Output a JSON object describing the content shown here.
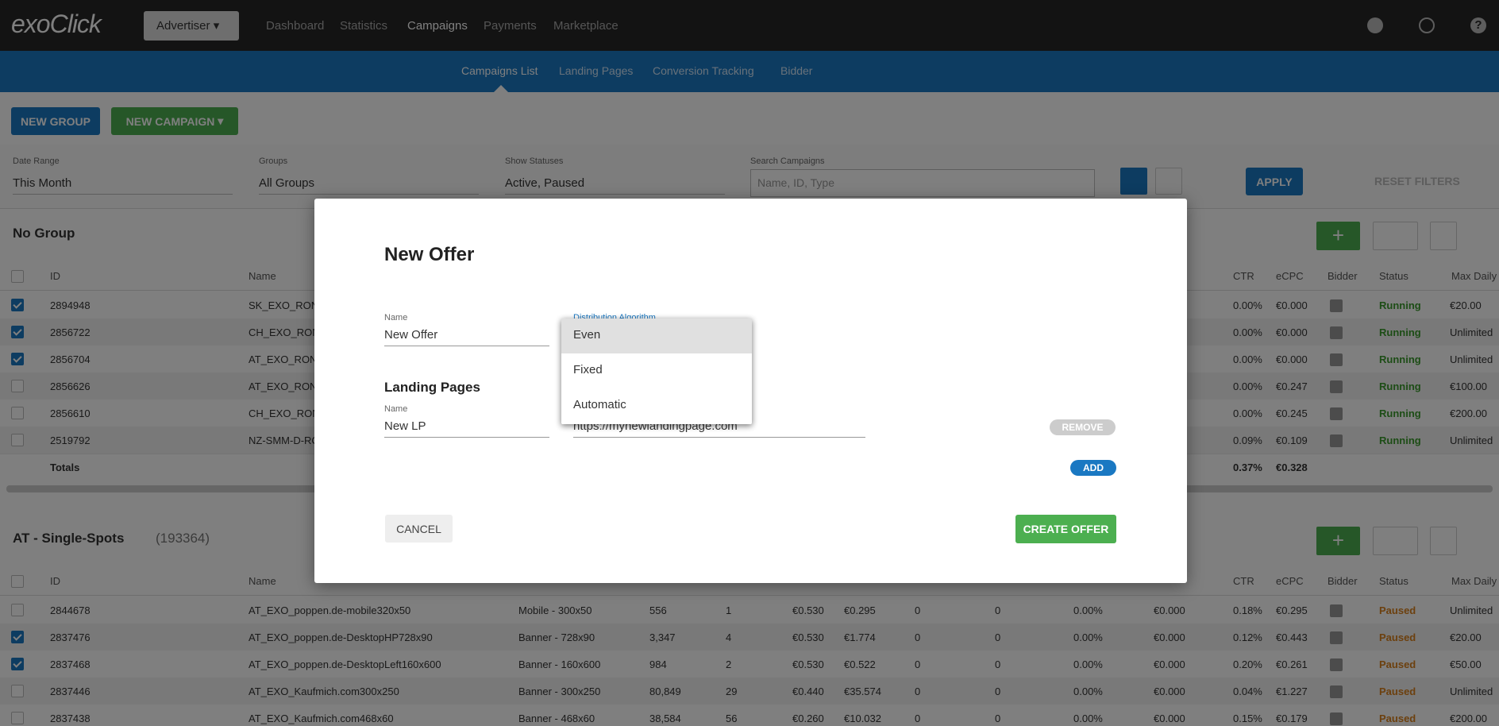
{
  "nav": {
    "logo": "exoClick",
    "account": "Advertiser",
    "menu": [
      "Dashboard",
      "Statistics",
      "Campaigns",
      "Payments",
      "Marketplace"
    ],
    "active": 2
  },
  "subnav": {
    "items": [
      "Campaigns List",
      "Landing Pages",
      "Conversion Tracking",
      "Bidder"
    ],
    "active": 0
  },
  "actions": {
    "new_group": "NEW GROUP",
    "new_campaign": "NEW CAMPAIGN"
  },
  "filters": [
    {
      "label": "Date Range",
      "value": "This Month"
    },
    {
      "label": "Groups",
      "value": "All Groups"
    },
    {
      "label": "Show Statuses",
      "value": "Active, Paused"
    },
    {
      "label": "Search Campaigns",
      "placeholder": "Name, ID, Type"
    }
  ],
  "filter_buttons": {
    "apply": "APPLY",
    "reset": "RESET FILTERS"
  },
  "groups": [
    {
      "title": "No Group",
      "headers": [
        "ID",
        "Name",
        "CTR",
        "eCPC",
        "Bidder",
        "Status",
        "Max Daily"
      ],
      "status_color": "#3a9a2c",
      "rows": [
        {
          "selected": true,
          "cells": [
            "2894948",
            "SK_EXO_RON_",
            "0.00%",
            "€0.000"
          ],
          "status": "Running",
          "max_daily": "€20.00"
        },
        {
          "selected": true,
          "cells": [
            "2856722",
            "CH_EXO_RON_",
            "0.00%",
            "€0.000"
          ],
          "status": "Running",
          "max_daily": "Unlimited"
        },
        {
          "selected": true,
          "cells": [
            "2856704",
            "AT_EXO_RON_",
            "0.00%",
            "€0.000"
          ],
          "status": "Running",
          "max_daily": "Unlimited"
        },
        {
          "selected": false,
          "cells": [
            "2856626",
            "AT_EXO_RON_",
            "0.00%",
            "€0.247"
          ],
          "status": "Running",
          "max_daily": "€100.00"
        },
        {
          "selected": false,
          "cells": [
            "2856610",
            "CH_EXO_RON_",
            "0.00%",
            "€0.245"
          ],
          "status": "Running",
          "max_daily": "€200.00"
        },
        {
          "selected": false,
          "cells": [
            "2519792",
            "NZ-SMM-D-RO",
            "0.09%",
            "€0.109"
          ],
          "status": "Running",
          "max_daily": "Unlimited"
        }
      ],
      "totals": {
        "label": "Totals",
        "ctr": "0.37%",
        "ecpc": "€0.328"
      }
    },
    {
      "title": "AT - Single-Spots",
      "count": "(193364)",
      "headers": [
        "ID",
        "Name",
        "CTR",
        "eCPC",
        "Bidder",
        "Status",
        "Max Daily"
      ],
      "status_color": "#d9801c",
      "rows": [
        {
          "selected": false,
          "cells": [
            "2844678",
            "AT_EXO_poppen.de-mobile320x50",
            "Mobile - 300x50",
            "556",
            "1",
            "€0.530",
            "€0.295",
            "0",
            "0",
            "0.00%",
            "€0.000",
            "0.18%",
            "€0.295"
          ],
          "status": "Paused",
          "max_daily": "Unlimited"
        },
        {
          "selected": true,
          "cells": [
            "2837476",
            "AT_EXO_poppen.de-DesktopHP728x90",
            "Banner - 728x90",
            "3,347",
            "4",
            "€0.530",
            "€1.774",
            "0",
            "0",
            "0.00%",
            "€0.000",
            "0.12%",
            "€0.443"
          ],
          "status": "Paused",
          "max_daily": "€20.00"
        },
        {
          "selected": true,
          "cells": [
            "2837468",
            "AT_EXO_poppen.de-DesktopLeft160x600",
            "Banner - 160x600",
            "984",
            "2",
            "€0.530",
            "€0.522",
            "0",
            "0",
            "0.00%",
            "€0.000",
            "0.20%",
            "€0.261"
          ],
          "status": "Paused",
          "max_daily": "€50.00"
        },
        {
          "selected": false,
          "cells": [
            "2837446",
            "AT_EXO_Kaufmich.com300x250",
            "Banner - 300x250",
            "80,849",
            "29",
            "€0.440",
            "€35.574",
            "0",
            "0",
            "0.00%",
            "€0.000",
            "0.04%",
            "€1.227"
          ],
          "status": "Paused",
          "max_daily": "Unlimited"
        },
        {
          "selected": false,
          "cells": [
            "2837438",
            "AT_EXO_Kaufmich.com468x60",
            "Banner - 468x60",
            "38,584",
            "56",
            "€0.260",
            "€10.032",
            "0",
            "0",
            "0.00%",
            "€0.000",
            "0.15%",
            "€0.179"
          ],
          "status": "Paused",
          "max_daily": "€200.00"
        }
      ]
    }
  ],
  "modal": {
    "title": "New Offer",
    "name_label": "Name",
    "name_value": "New Offer",
    "algorithm_label": "Distribution Algorithm",
    "algorithm_options": [
      "Even",
      "Fixed",
      "Automatic"
    ],
    "landing_pages_title": "Landing Pages",
    "lp_name_label": "Name",
    "lp_name_value": "New LP",
    "lp_url_value": "https://mynewlandingpage.com",
    "remove": "REMOVE",
    "add": "ADD",
    "cancel": "CANCEL",
    "create": "CREATE OFFER"
  }
}
